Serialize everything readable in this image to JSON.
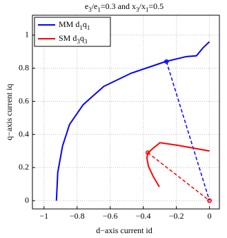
{
  "chart_data": {
    "type": "line",
    "title": "e3/e1=0.3 and x3/x1=0.5",
    "x_label": "d−axis current id",
    "y_label": "q−axis current iq",
    "xlim": [
      -1.07,
      0.06
    ],
    "ylim": [
      -0.05,
      1.12
    ],
    "xticks": [
      {
        "value": -1,
        "label": "−1"
      },
      {
        "value": -0.8,
        "label": "−0.8"
      },
      {
        "value": -0.6,
        "label": "−0.6"
      },
      {
        "value": -0.4,
        "label": "−0.4"
      },
      {
        "value": -0.2,
        "label": "−0.2"
      },
      0
    ],
    "yticks": [
      0,
      0.2,
      0.4,
      0.6,
      0.8,
      1
    ],
    "grid": true,
    "legend": "upper left",
    "origin": {
      "x": 0,
      "y": 0
    },
    "series": [
      {
        "name": "MM d1q1",
        "color": "#0000ff",
        "x": [
          -0.925,
          -0.917,
          -0.888,
          -0.846,
          -0.763,
          -0.639,
          -0.473,
          -0.266,
          -0.141,
          -0.079,
          -0.058,
          -0.037,
          0
        ],
        "values": [
          0,
          0.17,
          0.33,
          0.46,
          0.58,
          0.69,
          0.77,
          0.84,
          0.87,
          0.875,
          0.9,
          0.925,
          0.96
        ],
        "operating_point": {
          "x": -0.26,
          "y": 0.84
        }
      },
      {
        "name": "SM d3q3",
        "color": "#ff0000",
        "x": [
          -0.303,
          -0.34,
          -0.369,
          -0.378,
          -0.373,
          -0.34,
          -0.299,
          -0.183,
          0
        ],
        "values": [
          0.083,
          0.146,
          0.208,
          0.258,
          0.288,
          0.317,
          0.35,
          0.333,
          0.3
        ],
        "operating_point": {
          "x": -0.373,
          "y": 0.29
        }
      }
    ]
  }
}
